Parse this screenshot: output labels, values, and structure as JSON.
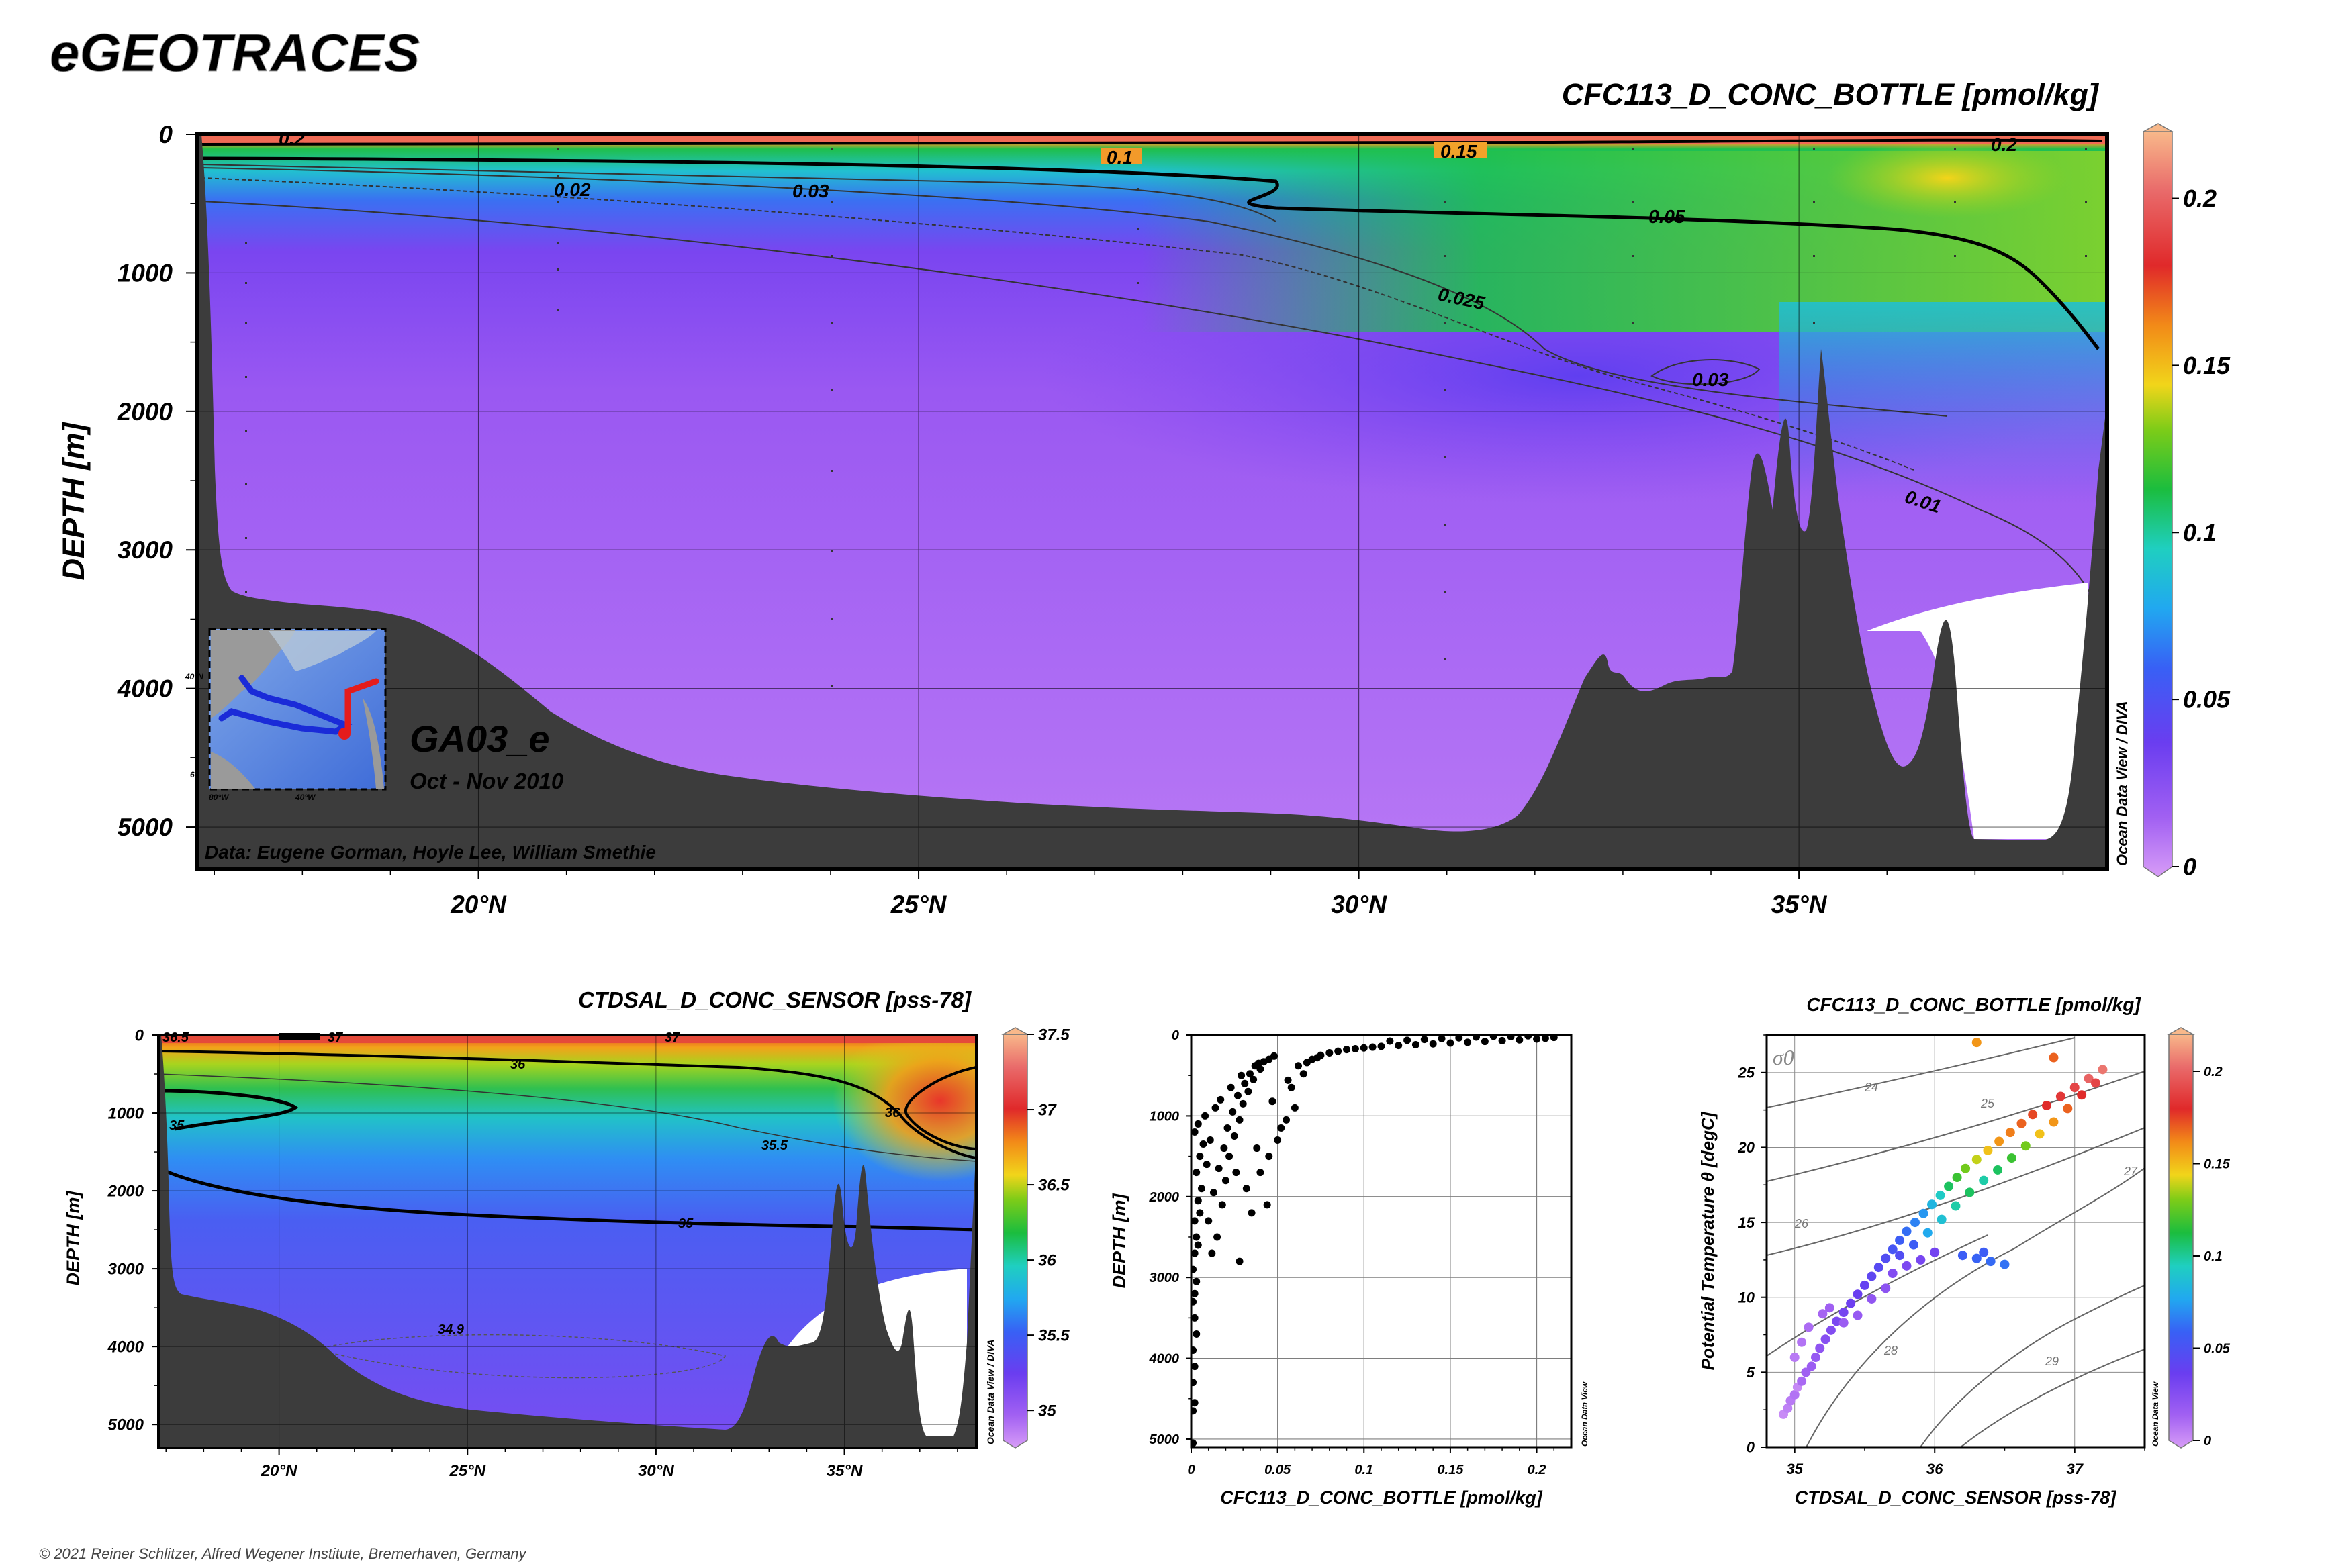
{
  "header": {
    "brand": "eGEOTRACES",
    "copyright": "© 2021 Reiner Schlitzer, Alfred Wegener Institute, Bremerhaven, Germany"
  },
  "colors": {
    "terrain": "#3c3c3c",
    "frame": "#000000",
    "colormap": [
      "#c98cf5",
      "#8a4ef0",
      "#5b3bf0",
      "#2a7ef5",
      "#22c9e6",
      "#19c15a",
      "#7ccc1a",
      "#f2d21a",
      "#f28a1a",
      "#e02a2a",
      "#e86060",
      "#f5b48c"
    ]
  },
  "main_section": {
    "title": "CFC113_D_CONC_BOTTLE [pmol/kg]",
    "ylabel": "DEPTH [m]",
    "cruise": "GA03_e",
    "period": "Oct - Nov 2010",
    "data_credit": "Data: Eugene Gorman, Hoyle Lee, William Smethie",
    "odv_credit": "Ocean Data View / DIVA",
    "inset_lat_label": "40°N",
    "inset_lat_label2": "60",
    "inset_lon_labels": [
      "80°W",
      "40°W"
    ]
  },
  "sal_section": {
    "title": "CTDSAL_D_CONC_SENSOR [pss-78]",
    "ylabel": "DEPTH [m]",
    "odv_credit": "Ocean Data View / DIVA"
  },
  "profile": {
    "xlabel": "CFC113_D_CONC_BOTTLE [pmol/kg]",
    "ylabel": "DEPTH [m]",
    "odv_credit": "Ocean Data View"
  },
  "ts_plot": {
    "title": "CFC113_D_CONC_BOTTLE [pmol/kg]",
    "xlabel": "CTDSAL_D_CONC_SENSOR [pss-78]",
    "ylabel": "Potential Temperature θ [degC]",
    "sigma_label": "σ0",
    "odv_credit": "Ocean Data View"
  },
  "chart_data": [
    {
      "type": "heatmap",
      "title": "CFC113_D_CONC_BOTTLE [pmol/kg]",
      "ylabel": "DEPTH [m]",
      "xlabel": "",
      "xlim": [
        16.8,
        38.5
      ],
      "ylim": [
        5300,
        0
      ],
      "x_ticks": [
        20,
        25,
        30,
        35
      ],
      "x_tick_labels": [
        "20°N",
        "25°N",
        "30°N",
        "35°N"
      ],
      "y_ticks": [
        0,
        1000,
        2000,
        3000,
        4000,
        5000
      ],
      "y_tick_labels": [
        "0",
        "1000",
        "2000",
        "3000",
        "4000",
        "5000"
      ],
      "colorbar": {
        "min": 0,
        "max": 0.22,
        "ticks": [
          0,
          0.05,
          0.1,
          0.15,
          0.2
        ],
        "tick_labels": [
          "0",
          "0.05",
          "0.1",
          "0.15",
          "0.2"
        ]
      },
      "contour_labels": [
        "0.2",
        "0.1",
        "0.15",
        "0.2",
        "0.02",
        "0.03",
        "0.05",
        "0.025",
        "0.03",
        "0.01"
      ]
    },
    {
      "type": "heatmap",
      "title": "CTDSAL_D_CONC_SENSOR [pss-78]",
      "ylabel": "DEPTH [m]",
      "xlim": [
        16.8,
        38.5
      ],
      "ylim": [
        5300,
        0
      ],
      "x_ticks": [
        20,
        25,
        30,
        35
      ],
      "x_tick_labels": [
        "20°N",
        "25°N",
        "30°N",
        "35°N"
      ],
      "y_ticks": [
        0,
        1000,
        2000,
        3000,
        4000,
        5000
      ],
      "y_tick_labels": [
        "0",
        "1000",
        "2000",
        "3000",
        "4000",
        "5000"
      ],
      "colorbar": {
        "min": 34.8,
        "max": 37.5,
        "ticks": [
          35,
          35.5,
          36,
          36.5,
          37,
          37.5
        ],
        "tick_labels": [
          "35",
          "35.5",
          "36",
          "36.5",
          "37",
          "37.5"
        ]
      },
      "contour_labels": [
        "36.5",
        "37",
        "37",
        "36",
        "35",
        "36",
        "35.5",
        "35",
        "34.9"
      ]
    },
    {
      "type": "scatter",
      "title": "",
      "xlabel": "CFC113_D_CONC_BOTTLE [pmol/kg]",
      "ylabel": "DEPTH [m]",
      "xlim": [
        0,
        0.22
      ],
      "ylim": [
        5100,
        0
      ],
      "x_ticks": [
        0,
        0.05,
        0.1,
        0.15,
        0.2
      ],
      "x_tick_labels": [
        "0",
        "0.05",
        "0.1",
        "0.15",
        "0.2"
      ],
      "y_ticks": [
        0,
        1000,
        2000,
        3000,
        4000,
        5000
      ],
      "y_tick_labels": [
        "0",
        "1000",
        "2000",
        "3000",
        "4000",
        "5000"
      ],
      "points": [
        [
          0.001,
          5050
        ],
        [
          0.001,
          4650
        ],
        [
          0.002,
          4550
        ],
        [
          0.001,
          4300
        ],
        [
          0.002,
          4100
        ],
        [
          0.001,
          3900
        ],
        [
          0.003,
          3700
        ],
        [
          0.002,
          3500
        ],
        [
          0.001,
          3300
        ],
        [
          0.002,
          3200
        ],
        [
          0.003,
          3050
        ],
        [
          0.001,
          2900
        ],
        [
          0.002,
          2700
        ],
        [
          0.004,
          2600
        ],
        [
          0.003,
          2500
        ],
        [
          0.002,
          2300
        ],
        [
          0.005,
          2200
        ],
        [
          0.004,
          2050
        ],
        [
          0.006,
          1900
        ],
        [
          0.003,
          1700
        ],
        [
          0.005,
          1500
        ],
        [
          0.007,
          1350
        ],
        [
          0.002,
          1200
        ],
        [
          0.004,
          1100
        ],
        [
          0.012,
          2700
        ],
        [
          0.015,
          2500
        ],
        [
          0.01,
          2300
        ],
        [
          0.018,
          2100
        ],
        [
          0.013,
          1950
        ],
        [
          0.02,
          1800
        ],
        [
          0.016,
          1650
        ],
        [
          0.022,
          1500
        ],
        [
          0.019,
          1400
        ],
        [
          0.025,
          1250
        ],
        [
          0.021,
          1150
        ],
        [
          0.028,
          1050
        ],
        [
          0.024,
          950
        ],
        [
          0.03,
          850
        ],
        [
          0.027,
          750
        ],
        [
          0.033,
          700
        ],
        [
          0.031,
          600
        ],
        [
          0.036,
          550
        ],
        [
          0.034,
          480
        ],
        [
          0.04,
          420
        ],
        [
          0.037,
          380
        ],
        [
          0.042,
          330
        ],
        [
          0.045,
          300
        ],
        [
          0.048,
          260
        ],
        [
          0.028,
          2800
        ],
        [
          0.035,
          2200
        ],
        [
          0.032,
          1900
        ],
        [
          0.04,
          1700
        ],
        [
          0.045,
          1500
        ],
        [
          0.05,
          1300
        ],
        [
          0.055,
          1050
        ],
        [
          0.06,
          900
        ],
        [
          0.058,
          650
        ],
        [
          0.065,
          480
        ],
        [
          0.062,
          380
        ],
        [
          0.07,
          300
        ],
        [
          0.075,
          250
        ],
        [
          0.08,
          220
        ],
        [
          0.085,
          200
        ],
        [
          0.09,
          180
        ],
        [
          0.095,
          170
        ],
        [
          0.1,
          160
        ],
        [
          0.105,
          150
        ],
        [
          0.11,
          140
        ],
        [
          0.12,
          130
        ],
        [
          0.13,
          120
        ],
        [
          0.14,
          110
        ],
        [
          0.15,
          100
        ],
        [
          0.16,
          90
        ],
        [
          0.17,
          80
        ],
        [
          0.18,
          70
        ],
        [
          0.19,
          60
        ],
        [
          0.2,
          50
        ],
        [
          0.205,
          40
        ],
        [
          0.21,
          30
        ],
        [
          0.185,
          20
        ],
        [
          0.195,
          10
        ],
        [
          0.175,
          15
        ],
        [
          0.165,
          25
        ],
        [
          0.155,
          35
        ],
        [
          0.145,
          45
        ],
        [
          0.135,
          55
        ],
        [
          0.125,
          65
        ],
        [
          0.115,
          75
        ],
        [
          0.026,
          1700
        ],
        [
          0.044,
          2100
        ],
        [
          0.038,
          1400
        ],
        [
          0.052,
          1150
        ],
        [
          0.047,
          820
        ],
        [
          0.056,
          560
        ],
        [
          0.067,
          340
        ],
        [
          0.073,
          280
        ],
        [
          0.009,
          1600
        ],
        [
          0.011,
          1300
        ],
        [
          0.008,
          1000
        ],
        [
          0.014,
          900
        ],
        [
          0.017,
          800
        ],
        [
          0.023,
          650
        ],
        [
          0.029,
          500
        ],
        [
          0.039,
          350
        ]
      ]
    },
    {
      "type": "scatter",
      "title": "CFC113_D_CONC_BOTTLE [pmol/kg]",
      "xlabel": "CTDSAL_D_CONC_SENSOR [pss-78]",
      "ylabel": "Potential Temperature θ [degC]",
      "xlim": [
        34.8,
        37.5
      ],
      "ylim": [
        0,
        27.5
      ],
      "x_ticks": [
        35,
        36,
        37
      ],
      "x_tick_labels": [
        "35",
        "36",
        "37"
      ],
      "y_ticks": [
        0,
        5,
        10,
        15,
        20,
        25
      ],
      "y_tick_labels": [
        "0",
        "5",
        "10",
        "15",
        "20",
        "25"
      ],
      "isopycnal_labels": [
        "24",
        "25",
        "26",
        "27",
        "28",
        "29"
      ],
      "colorbar": {
        "min": 0,
        "max": 0.22,
        "ticks": [
          0,
          0.05,
          0.1,
          0.15,
          0.2
        ],
        "tick_labels": [
          "0",
          "0.05",
          "0.1",
          "0.15",
          "0.2"
        ]
      },
      "points": [
        [
          34.92,
          2.2,
          0.005
        ],
        [
          34.95,
          2.6,
          0.008
        ],
        [
          34.97,
          3.1,
          0.01
        ],
        [
          35.0,
          3.5,
          0.012
        ],
        [
          35.02,
          4.0,
          0.006
        ],
        [
          35.05,
          4.4,
          0.015
        ],
        [
          35.08,
          5.0,
          0.018
        ],
        [
          35.12,
          5.4,
          0.02
        ],
        [
          35.15,
          6.0,
          0.022
        ],
        [
          35.18,
          6.6,
          0.025
        ],
        [
          35.22,
          7.2,
          0.028
        ],
        [
          35.26,
          7.8,
          0.03
        ],
        [
          35.3,
          8.4,
          0.033
        ],
        [
          35.35,
          9.0,
          0.035
        ],
        [
          35.4,
          9.6,
          0.038
        ],
        [
          35.45,
          10.2,
          0.04
        ],
        [
          35.5,
          10.8,
          0.042
        ],
        [
          35.55,
          11.4,
          0.045
        ],
        [
          35.6,
          12.0,
          0.048
        ],
        [
          35.65,
          12.6,
          0.05
        ],
        [
          35.7,
          13.2,
          0.055
        ],
        [
          35.75,
          13.8,
          0.06
        ],
        [
          35.8,
          14.4,
          0.065
        ],
        [
          35.86,
          15.0,
          0.07
        ],
        [
          35.92,
          15.6,
          0.075
        ],
        [
          35.98,
          16.2,
          0.085
        ],
        [
          36.04,
          16.8,
          0.095
        ],
        [
          36.1,
          17.4,
          0.11
        ],
        [
          36.16,
          18.0,
          0.12
        ],
        [
          36.22,
          18.6,
          0.13
        ],
        [
          36.3,
          19.2,
          0.14
        ],
        [
          36.38,
          19.8,
          0.15
        ],
        [
          36.46,
          20.4,
          0.16
        ],
        [
          36.54,
          21.0,
          0.165
        ],
        [
          36.62,
          21.6,
          0.17
        ],
        [
          36.7,
          22.2,
          0.175
        ],
        [
          36.8,
          22.8,
          0.18
        ],
        [
          36.9,
          23.4,
          0.185
        ],
        [
          37.0,
          24.0,
          0.19
        ],
        [
          37.1,
          24.6,
          0.2
        ],
        [
          37.2,
          25.2,
          0.205
        ],
        [
          36.85,
          26.0,
          0.17
        ],
        [
          36.3,
          27.0,
          0.16
        ],
        [
          35.0,
          6.0,
          0.01
        ],
        [
          35.05,
          7.0,
          0.012
        ],
        [
          35.1,
          8.0,
          0.014
        ],
        [
          35.2,
          8.9,
          0.016
        ],
        [
          35.25,
          9.3,
          0.018
        ],
        [
          35.35,
          8.3,
          0.02
        ],
        [
          35.45,
          8.8,
          0.022
        ],
        [
          35.55,
          9.9,
          0.024
        ],
        [
          35.65,
          10.6,
          0.026
        ],
        [
          35.7,
          11.6,
          0.03
        ],
        [
          35.8,
          12.1,
          0.032
        ],
        [
          35.9,
          12.5,
          0.034
        ],
        [
          36.0,
          13.0,
          0.036
        ],
        [
          36.2,
          12.8,
          0.06
        ],
        [
          36.3,
          12.6,
          0.062
        ],
        [
          36.4,
          12.4,
          0.064
        ],
        [
          36.5,
          12.2,
          0.066
        ],
        [
          36.35,
          13.0,
          0.06
        ],
        [
          35.75,
          12.8,
          0.05
        ],
        [
          35.85,
          13.5,
          0.06
        ],
        [
          35.95,
          14.3,
          0.08
        ],
        [
          36.05,
          15.2,
          0.09
        ],
        [
          36.15,
          16.1,
          0.1
        ],
        [
          36.25,
          17.0,
          0.11
        ],
        [
          36.35,
          17.8,
          0.1
        ],
        [
          36.45,
          18.5,
          0.11
        ],
        [
          36.55,
          19.3,
          0.12
        ],
        [
          36.65,
          20.1,
          0.13
        ],
        [
          36.75,
          20.9,
          0.15
        ],
        [
          36.85,
          21.7,
          0.16
        ],
        [
          36.95,
          22.6,
          0.17
        ],
        [
          37.05,
          23.5,
          0.18
        ],
        [
          37.15,
          24.3,
          0.19
        ]
      ]
    }
  ]
}
